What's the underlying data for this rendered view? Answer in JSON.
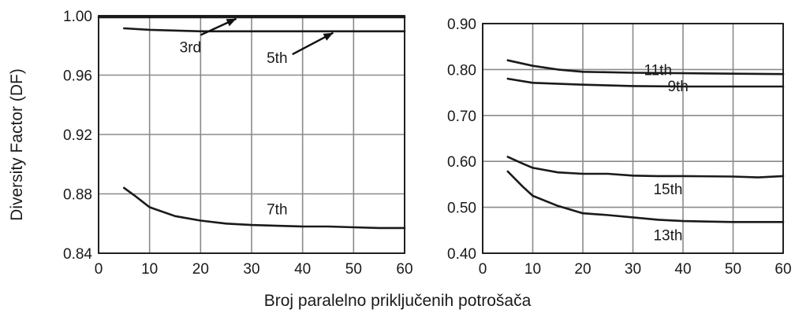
{
  "shared_xlabel": "Broj paralelno priključenih potrošača",
  "chart_data": [
    {
      "type": "line",
      "ylabel": "Diversity Factor (DF)",
      "xlim": [
        0,
        60
      ],
      "ylim": [
        0.84,
        1.0
      ],
      "x_ticks": [
        "0",
        "10",
        "20",
        "30",
        "40",
        "50",
        "60"
      ],
      "y_ticks": [
        "1.00",
        "0.96",
        "0.92",
        "0.88",
        "0.84"
      ],
      "grid": true,
      "series": [
        {
          "name": "3rd",
          "x": [
            0,
            60
          ],
          "y": [
            0.999,
            0.999
          ]
        },
        {
          "name": "5th",
          "x": [
            5,
            10,
            20,
            30,
            40,
            50,
            60
          ],
          "y": [
            0.9915,
            0.9905,
            0.9895,
            0.9895,
            0.9895,
            0.9895,
            0.9895
          ]
        },
        {
          "name": "7th",
          "x": [
            5,
            7,
            10,
            15,
            20,
            25,
            30,
            35,
            40,
            45,
            50,
            55,
            60
          ],
          "y": [
            0.884,
            0.879,
            0.871,
            0.865,
            0.862,
            0.86,
            0.859,
            0.8585,
            0.858,
            0.858,
            0.8575,
            0.857,
            0.857
          ]
        }
      ],
      "annotations": [
        {
          "text": "3rd",
          "at": [
            18,
            0.979
          ],
          "arrow_from": [
            20,
            0.987
          ],
          "arrow_to": [
            27,
            0.998
          ]
        },
        {
          "text": "5th",
          "at": [
            35,
            0.972
          ],
          "arrow_from": [
            38,
            0.974
          ],
          "arrow_to": [
            46,
            0.9885
          ]
        },
        {
          "text": "7th",
          "at": [
            35,
            0.87
          ]
        }
      ]
    },
    {
      "type": "line",
      "xlim": [
        0,
        60
      ],
      "ylim": [
        0.4,
        0.9
      ],
      "x_ticks": [
        "0",
        "10",
        "20",
        "30",
        "40",
        "50",
        "60"
      ],
      "y_ticks": [
        "0.90",
        "0.80",
        "0.70",
        "0.60",
        "0.50",
        "0.40"
      ],
      "grid": true,
      "series": [
        {
          "name": "11th",
          "x": [
            5,
            10,
            15,
            20,
            30,
            40,
            50,
            60
          ],
          "y": [
            0.82,
            0.808,
            0.8,
            0.795,
            0.793,
            0.792,
            0.791,
            0.79
          ]
        },
        {
          "name": "9th",
          "x": [
            5,
            10,
            20,
            30,
            40,
            50,
            60
          ],
          "y": [
            0.78,
            0.771,
            0.767,
            0.764,
            0.763,
            0.763,
            0.763
          ]
        },
        {
          "name": "15th",
          "x": [
            5,
            8,
            10,
            15,
            20,
            25,
            30,
            35,
            40,
            50,
            55,
            60
          ],
          "y": [
            0.61,
            0.595,
            0.586,
            0.576,
            0.573,
            0.573,
            0.569,
            0.568,
            0.568,
            0.567,
            0.565,
            0.568
          ]
        },
        {
          "name": "13th",
          "x": [
            5,
            8,
            10,
            15,
            20,
            25,
            30,
            35,
            40,
            50,
            60
          ],
          "y": [
            0.578,
            0.545,
            0.525,
            0.503,
            0.487,
            0.483,
            0.478,
            0.473,
            0.47,
            0.468,
            0.468
          ]
        }
      ],
      "annotations": [
        {
          "text": "11th",
          "at": [
            35,
            0.8
          ]
        },
        {
          "text": "9th",
          "at": [
            39,
            0.765
          ]
        },
        {
          "text": "15th",
          "at": [
            37,
            0.54
          ]
        },
        {
          "text": "13th",
          "at": [
            37,
            0.44
          ]
        }
      ]
    }
  ]
}
